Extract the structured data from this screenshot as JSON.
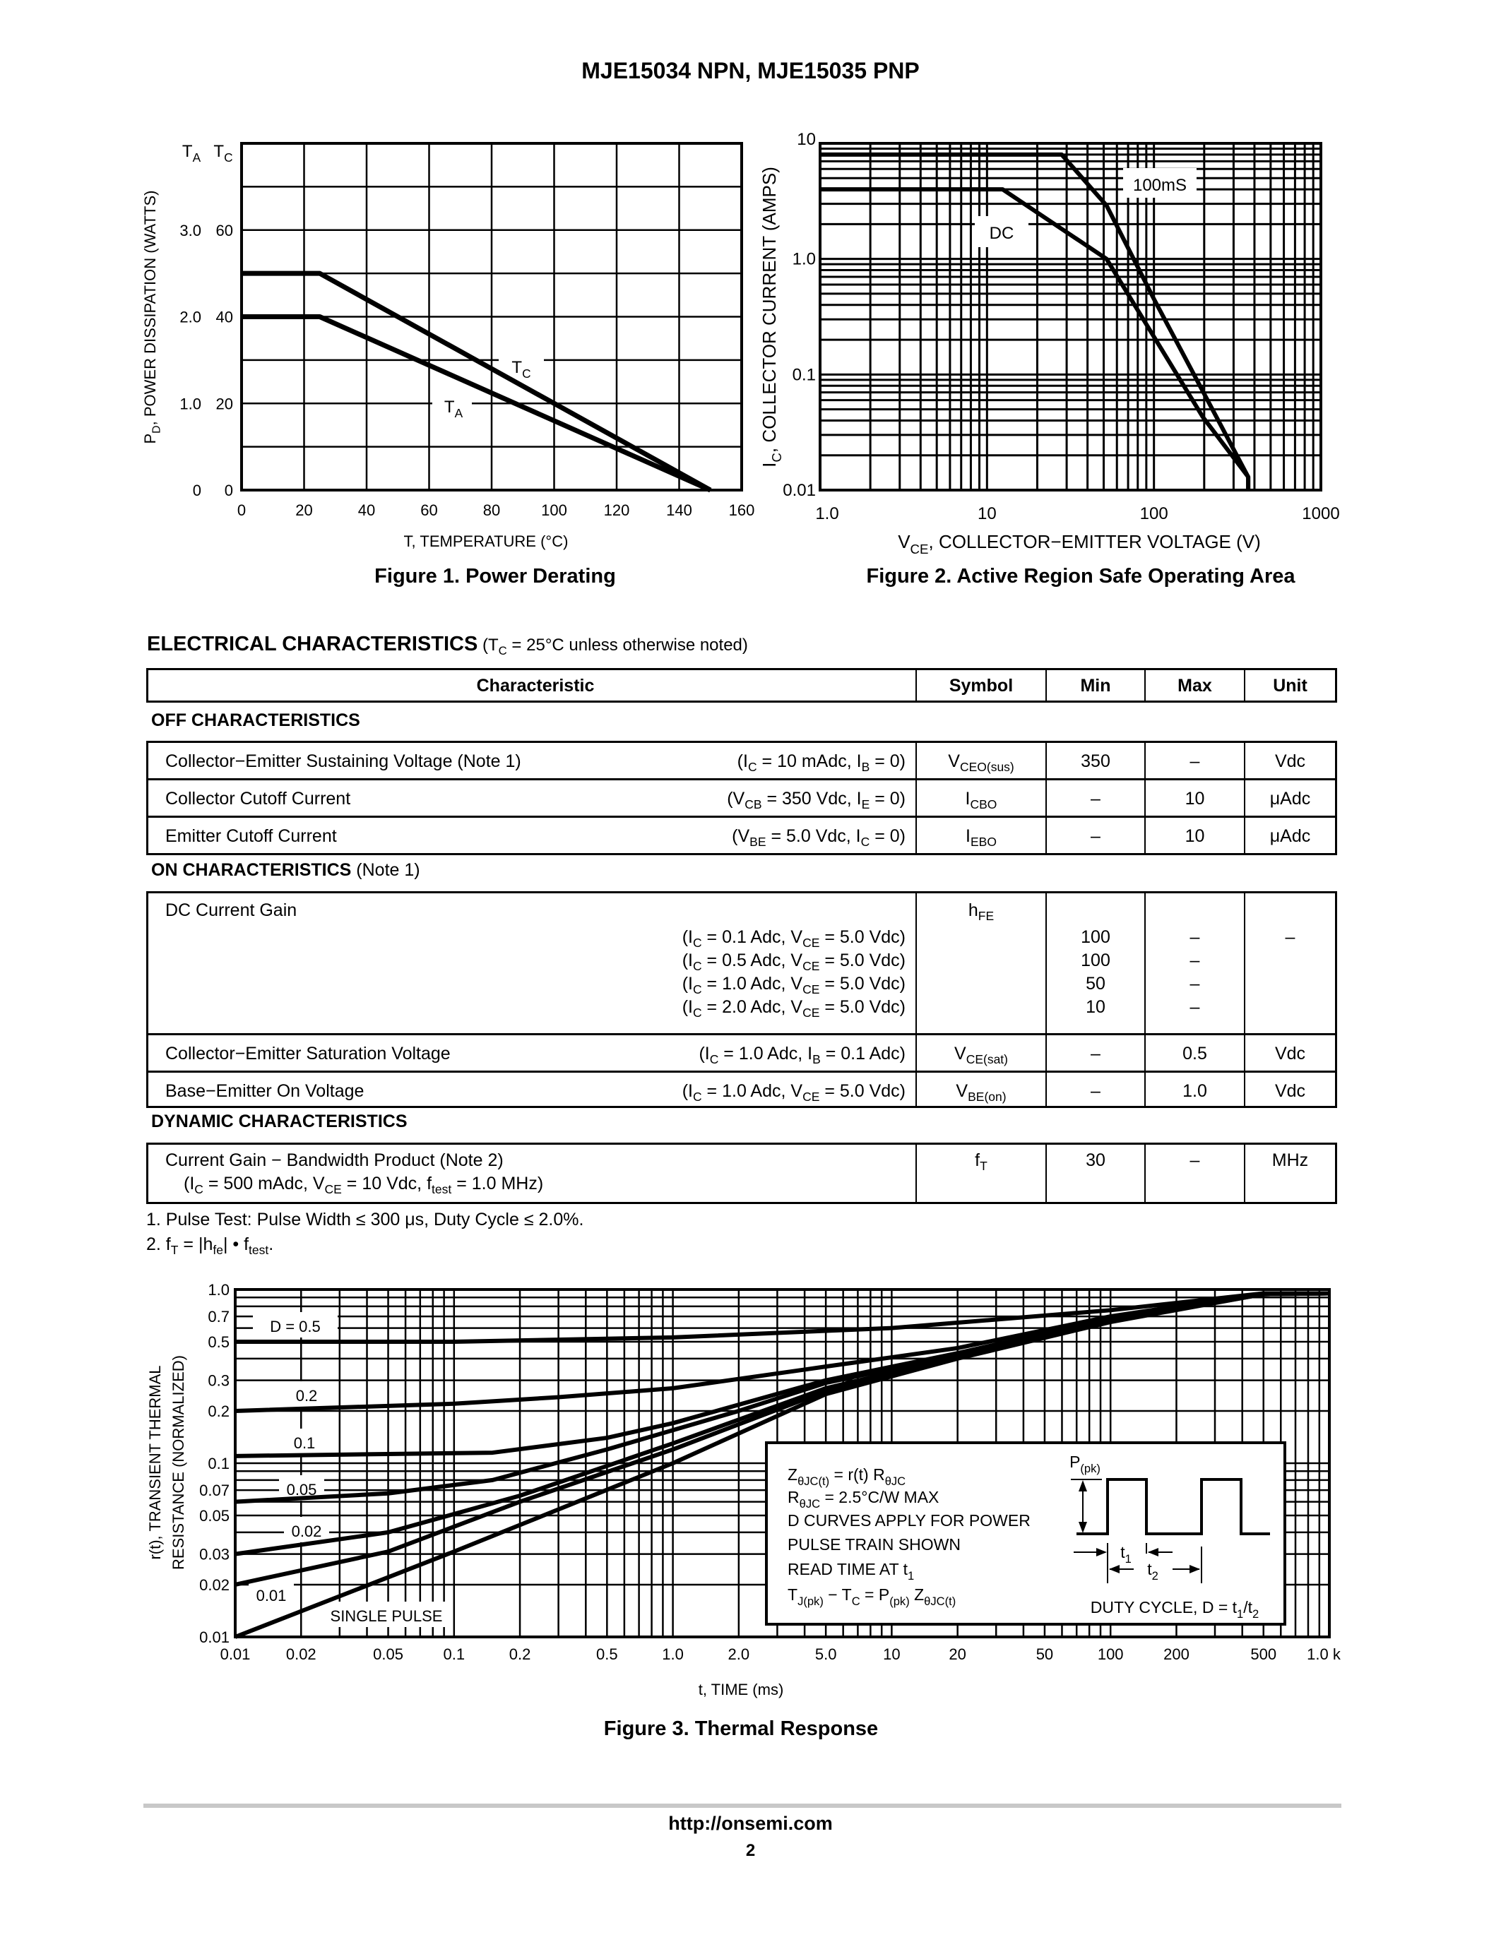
{
  "header": {
    "title": "MJE15034 NPN, MJE15035 PNP"
  },
  "figures": {
    "fig1_caption": "Figure 1. Power Derating",
    "fig2_caption": "Figure 2. Active Region Safe Operating Area",
    "fig3_caption": "Figure 3. Thermal Response"
  },
  "chart_data": [
    {
      "type": "line",
      "xlabel": "T, TEMPERATURE (°C)",
      "ylabel": "P_{D}, POWER DISSIPATION (WATTS)",
      "xlim": [
        0,
        160
      ],
      "x_ticks": [
        "0",
        "20",
        "40",
        "60",
        "80",
        "100",
        "120",
        "140",
        "160"
      ],
      "y_axes": [
        {
          "header": "T_{A}",
          "ylim": [
            0,
            4
          ],
          "ticks": [
            "0",
            "1.0",
            "2.0",
            "3.0"
          ],
          "tick_values": [
            0,
            1,
            2,
            3
          ]
        },
        {
          "header": "T_{C}",
          "ylim": [
            0,
            80
          ],
          "ticks": [
            "0",
            "20",
            "40",
            "60"
          ],
          "tick_values": [
            0,
            20,
            40,
            60
          ]
        }
      ],
      "grid": true,
      "series": [
        {
          "name": "T_{C}",
          "axis": 1,
          "points": [
            [
              0,
              50
            ],
            [
              25,
              50
            ],
            [
              150,
              0
            ]
          ]
        },
        {
          "name": "T_{A}",
          "axis": 0,
          "points": [
            [
              0,
              2.0
            ],
            [
              25,
              2.0
            ],
            [
              150,
              0
            ]
          ]
        }
      ]
    },
    {
      "type": "line",
      "xlabel": "V_{CE}, COLLECTOR−EMITTER VOLTAGE (V)",
      "ylabel": "I_{C}, COLLECTOR CURRENT (AMPS)",
      "xscale": "log",
      "yscale": "log",
      "xlim": [
        1,
        1000
      ],
      "ylim": [
        0.01,
        10
      ],
      "x_ticks": [
        "1.0",
        "10",
        "100",
        "1000"
      ],
      "x_tick_values": [
        1,
        10,
        100,
        1000
      ],
      "y_ticks": [
        "10",
        "1.0",
        "0.1",
        "0.01"
      ],
      "y_tick_values": [
        10,
        1,
        0.1,
        0.01
      ],
      "grid": true,
      "series": [
        {
          "name": "100mS",
          "points": [
            [
              1,
              8
            ],
            [
              28,
              8
            ],
            [
              52,
              2.9
            ],
            [
              100,
              0.45
            ],
            [
              367,
              0.013
            ],
            [
              367,
              0.01
            ]
          ]
        },
        {
          "name": "DC",
          "points": [
            [
              1,
              4
            ],
            [
              12.4,
              4
            ],
            [
              52,
              1.0
            ],
            [
              196,
              0.043
            ],
            [
              367,
              0.013
            ],
            [
              367,
              0.01
            ]
          ]
        }
      ]
    },
    {
      "type": "line",
      "xlabel": "t, TIME (ms)",
      "ylabel": [
        "r(t), TRANSIENT THERMAL",
        "RESISTANCE (NORMALIZED)"
      ],
      "xscale": "log",
      "yscale": "log",
      "xlim": [
        0.01,
        1000
      ],
      "ylim": [
        0.01,
        1.0
      ],
      "x_ticks": [
        "0.01",
        "0.02",
        "0.05",
        "0.1",
        "0.2",
        "0.5",
        "1.0",
        "2.0",
        "5.0",
        "10",
        "20",
        "50",
        "100",
        "200",
        "500",
        "1.0 k"
      ],
      "x_tick_values": [
        0.01,
        0.02,
        0.05,
        0.1,
        0.2,
        0.5,
        1,
        2,
        5,
        10,
        20,
        50,
        100,
        200,
        500,
        1000
      ],
      "y_ticks": [
        "1.0",
        "0.7",
        "0.5",
        "0.3",
        "0.2",
        "0.1",
        "0.07",
        "0.05",
        "0.03",
        "0.02",
        "0.01"
      ],
      "y_tick_values": [
        1,
        0.7,
        0.5,
        0.3,
        0.2,
        0.1,
        0.07,
        0.05,
        0.03,
        0.02,
        0.01
      ],
      "grid": true,
      "series": [
        {
          "name": "D = 0.5",
          "points": [
            [
              0.01,
              0.5
            ],
            [
              0.1,
              0.5
            ],
            [
              1,
              0.53
            ],
            [
              10,
              0.6
            ],
            [
              100,
              0.76
            ],
            [
              500,
              0.95
            ],
            [
              1000,
              0.95
            ]
          ]
        },
        {
          "name": "0.2",
          "points": [
            [
              0.01,
              0.2
            ],
            [
              0.1,
              0.22
            ],
            [
              0.3,
              0.24
            ],
            [
              1,
              0.27
            ],
            [
              5,
              0.36
            ],
            [
              20,
              0.46
            ],
            [
              100,
              0.7
            ],
            [
              500,
              0.95
            ],
            [
              1000,
              0.95
            ]
          ]
        },
        {
          "name": "0.1",
          "points": [
            [
              0.01,
              0.11
            ],
            [
              0.15,
              0.115
            ],
            [
              0.5,
              0.14
            ],
            [
              1,
              0.17
            ],
            [
              5,
              0.3
            ],
            [
              20,
              0.43
            ],
            [
              100,
              0.68
            ],
            [
              500,
              0.94
            ],
            [
              1000,
              0.95
            ]
          ]
        },
        {
          "name": "0.05",
          "points": [
            [
              0.01,
              0.06
            ],
            [
              0.05,
              0.067
            ],
            [
              0.15,
              0.08
            ],
            [
              0.5,
              0.12
            ],
            [
              2,
              0.2
            ],
            [
              5,
              0.29
            ],
            [
              20,
              0.42
            ],
            [
              100,
              0.67
            ],
            [
              500,
              0.94
            ],
            [
              1000,
              0.95
            ]
          ]
        },
        {
          "name": "0.02",
          "points": [
            [
              0.01,
              0.03
            ],
            [
              0.05,
              0.04
            ],
            [
              0.2,
              0.065
            ],
            [
              1,
              0.13
            ],
            [
              5,
              0.27
            ],
            [
              20,
              0.41
            ],
            [
              100,
              0.66
            ],
            [
              500,
              0.94
            ],
            [
              1000,
              0.95
            ]
          ]
        },
        {
          "name": "0.01",
          "points": [
            [
              0.01,
              0.02
            ],
            [
              0.05,
              0.031
            ],
            [
              0.2,
              0.06
            ],
            [
              1,
              0.12
            ],
            [
              5,
              0.26
            ],
            [
              20,
              0.41
            ],
            [
              100,
              0.66
            ],
            [
              500,
              0.94
            ],
            [
              1000,
              0.95
            ]
          ]
        },
        {
          "name": "SINGLE PULSE",
          "points": [
            [
              0.01,
              0.01
            ],
            [
              0.1,
              0.031
            ],
            [
              1,
              0.1
            ],
            [
              5,
              0.25
            ],
            [
              20,
              0.4
            ],
            [
              100,
              0.65
            ],
            [
              500,
              0.94
            ],
            [
              1000,
              0.95
            ]
          ]
        }
      ],
      "annotation": {
        "lines": [
          "Z_{θJC(t)} = r(t) R_{θJC}",
          "R_{θJC} = 2.5°C/W MAX",
          "D CURVES APPLY FOR POWER",
          "PULSE TRAIN SHOWN",
          "READ TIME AT t_{1}",
          "T_{J(pk)} − T_{C} = P_{(pk)} Z_{θJC(t)}"
        ],
        "ppk": "P_{(pk)}",
        "t1": "t_{1}",
        "t2": "t_{2}",
        "duty": "DUTY CYCLE, D = t_{1}/t_{2}"
      }
    }
  ],
  "electrical": {
    "title": "ELECTRICAL CHARACTERISTICS",
    "title_note": "(T_{C} = 25°C unless otherwise noted)",
    "headers": [
      "Characteristic",
      "Symbol",
      "Min",
      "Max",
      "Unit"
    ],
    "off": {
      "label": "OFF CHARACTERISTICS",
      "rows": [
        {
          "name": "Collector−Emitter Sustaining Voltage (Note 1)",
          "cond": "(I_{C} = 10 mAdc, I_{B} = 0)",
          "sym": "V_{CEO(sus)}",
          "min": "350",
          "max": "–",
          "unit": "Vdc"
        },
        {
          "name": "Collector Cutoff Current",
          "cond": "(V_{CB} = 350 Vdc, I_{E} = 0)",
          "sym": "I_{CBO}",
          "min": "–",
          "max": "10",
          "unit": "μAdc"
        },
        {
          "name": "Emitter Cutoff Current",
          "cond": "(V_{BE} = 5.0 Vdc, I_{C} = 0)",
          "sym": "I_{EBO}",
          "min": "–",
          "max": "10",
          "unit": "μAdc"
        }
      ]
    },
    "on": {
      "label": "ON CHARACTERISTICS",
      "label_note": "(Note 1)",
      "gain": {
        "name": "DC Current Gain",
        "sym": "h_{FE}",
        "conds": [
          "(I_{C} = 0.1 Adc, V_{CE} = 5.0 Vdc)",
          "(I_{C} = 0.5 Adc, V_{CE} = 5.0 Vdc)",
          "(I_{C} = 1.0 Adc, V_{CE} = 5.0 Vdc)",
          "(I_{C} = 2.0 Adc, V_{CE} = 5.0 Vdc)"
        ],
        "min": [
          "100",
          "100",
          "50",
          "10"
        ],
        "max": [
          "–",
          "–",
          "–",
          "–"
        ],
        "unit": "–"
      },
      "rows": [
        {
          "name": "Collector−Emitter Saturation Voltage",
          "cond": "(I_{C} = 1.0 Adc, I_{B} = 0.1 Adc)",
          "sym": "V_{CE(sat)}",
          "min": "–",
          "max": "0.5",
          "unit": "Vdc"
        },
        {
          "name": "Base−Emitter On Voltage",
          "cond": "(I_{C} = 1.0 Adc, V_{CE} = 5.0 Vdc)",
          "sym": "V_{BE(on)}",
          "min": "–",
          "max": "1.0",
          "unit": "Vdc"
        }
      ]
    },
    "dynamic": {
      "label": "DYNAMIC CHARACTERISTICS",
      "row": {
        "name": "Current Gain − Bandwidth Product (Note 2)",
        "cond": "(I_{C} = 500 mAdc, V_{CE} = 10 Vdc, f_{test} = 1.0 MHz)",
        "sym": "f_{T}",
        "min": "30",
        "max": "–",
        "unit": "MHz"
      }
    }
  },
  "notes": [
    "1.  Pulse Test: Pulse Width ≤ 300 μs, Duty Cycle ≤ 2.0%.",
    "2.  f_{T} = |h_{fe}| • f_{test}."
  ],
  "footer": {
    "url": "http://onsemi.com",
    "page": "2"
  }
}
